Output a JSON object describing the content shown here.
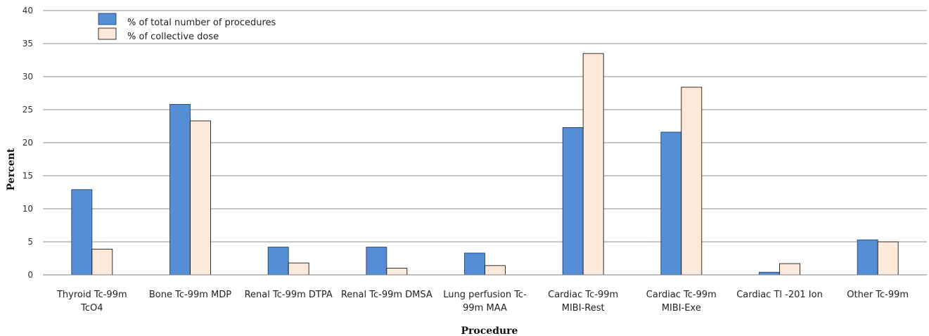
{
  "chart_data": {
    "type": "bar",
    "title": "",
    "xlabel": "Procedure",
    "ylabel": "Percent",
    "ylim": [
      0,
      40
    ],
    "yticks": [
      0,
      5,
      10,
      15,
      20,
      25,
      30,
      35,
      40
    ],
    "grid": true,
    "legend_position": "top-left",
    "categories": [
      [
        "Thyroid Tc-99m",
        "TcO4"
      ],
      [
        "Bone Tc-99m MDP"
      ],
      [
        "Renal Tc-99m DTPA"
      ],
      [
        "Renal Tc-99m DMSA"
      ],
      [
        "Lung perfusion Tc-",
        "99m MAA"
      ],
      [
        "Cardiac Tc-99m",
        "MIBI-Rest"
      ],
      [
        "Cardiac Tc-99m",
        "MIBI-Exe"
      ],
      [
        "Cardiac Tl -201 Ion"
      ],
      [
        "Other Tc-99m"
      ]
    ],
    "series": [
      {
        "name": "% of total number of procedures",
        "color": "#558ED5",
        "values": [
          12.9,
          25.8,
          4.2,
          4.2,
          3.3,
          22.3,
          21.6,
          0.4,
          5.3
        ]
      },
      {
        "name": "% of collective dose",
        "color": "#FDE9D9",
        "values": [
          3.9,
          23.3,
          1.8,
          1.0,
          1.4,
          33.5,
          28.4,
          1.7,
          5.0
        ]
      }
    ]
  }
}
